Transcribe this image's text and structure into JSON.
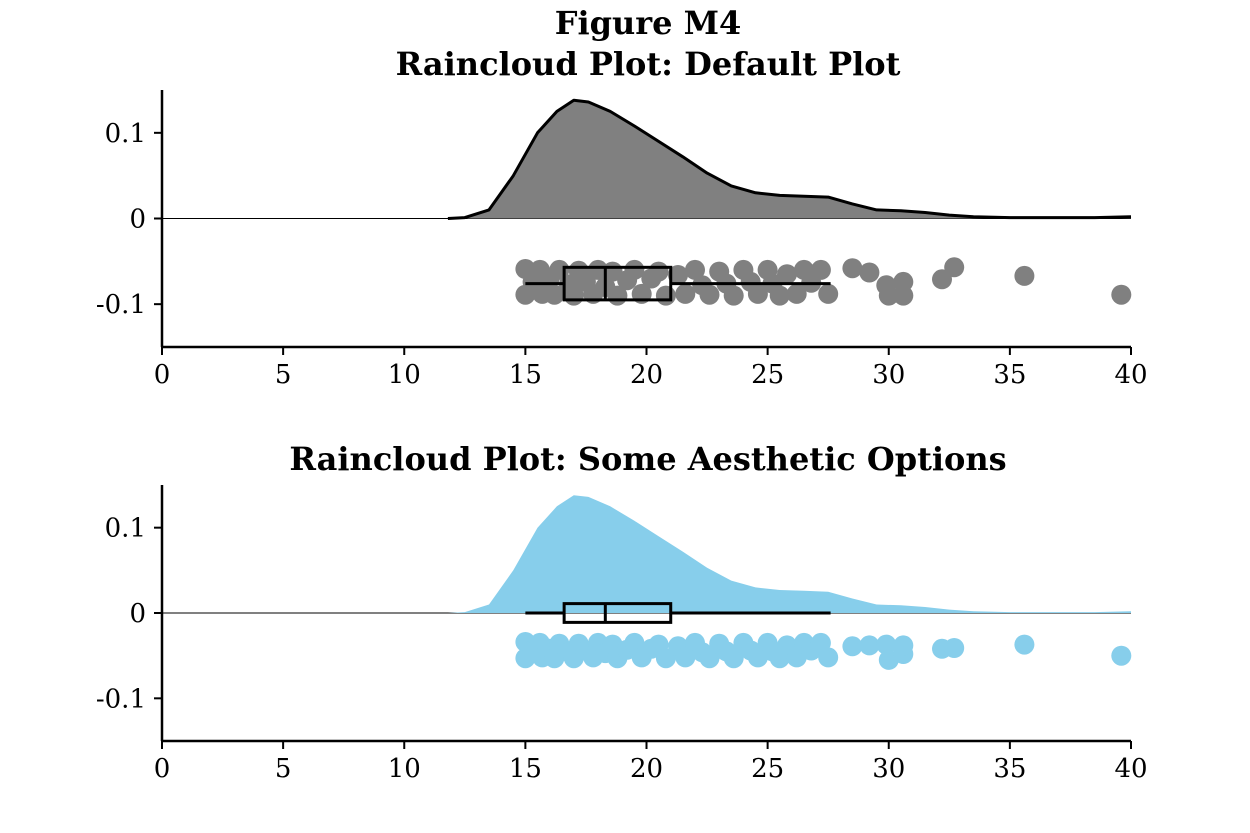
{
  "figure": {
    "title_line1": "Figure M4",
    "title_line2": "Raincloud Plot: Default Plot"
  },
  "chart_data": [
    {
      "type": "raincloud",
      "title": "Raincloud Plot: Default Plot",
      "xlim": [
        0,
        40
      ],
      "ylim": [
        -0.15,
        0.15
      ],
      "xticks": [
        "0",
        "5",
        "10",
        "15",
        "20",
        "25",
        "30",
        "35",
        "40"
      ],
      "yticks": [
        "0.1",
        "0",
        "-0.1"
      ],
      "ytick_values": [
        0.1,
        0,
        -0.1
      ],
      "grid": false,
      "style": {
        "cloud_fill": "#808080",
        "cloud_outline": "#000000",
        "rain_color": "#808080",
        "box_color": "#000000"
      },
      "density": [
        [
          11.8,
          0.0
        ],
        [
          12.5,
          0.001
        ],
        [
          13.5,
          0.01
        ],
        [
          14.5,
          0.05
        ],
        [
          15.5,
          0.1
        ],
        [
          16.3,
          0.125
        ],
        [
          17.0,
          0.138
        ],
        [
          17.6,
          0.136
        ],
        [
          18.5,
          0.125
        ],
        [
          19.5,
          0.108
        ],
        [
          20.5,
          0.09
        ],
        [
          21.5,
          0.072
        ],
        [
          22.5,
          0.053
        ],
        [
          23.5,
          0.038
        ],
        [
          24.5,
          0.03
        ],
        [
          25.5,
          0.027
        ],
        [
          26.5,
          0.026
        ],
        [
          27.5,
          0.025
        ],
        [
          28.5,
          0.017
        ],
        [
          29.5,
          0.01
        ],
        [
          30.5,
          0.009
        ],
        [
          31.5,
          0.007
        ],
        [
          32.5,
          0.004
        ],
        [
          33.5,
          0.002
        ],
        [
          35,
          0.001
        ],
        [
          37,
          0.001
        ],
        [
          38.5,
          0.001
        ],
        [
          40,
          0.002
        ]
      ],
      "boxplot": {
        "whisker_low": 15.0,
        "q1": 16.6,
        "median": 18.3,
        "q3": 21.0,
        "whisker_high": 27.6,
        "y": -0.076,
        "half_height": 0.019
      },
      "rain": [
        [
          15.0,
          -0.059
        ],
        [
          15.0,
          -0.089
        ],
        [
          15.3,
          -0.074
        ],
        [
          15.6,
          -0.06
        ],
        [
          15.7,
          -0.088
        ],
        [
          16.0,
          -0.07
        ],
        [
          16.2,
          -0.089
        ],
        [
          16.4,
          -0.06
        ],
        [
          16.8,
          -0.077
        ],
        [
          17.0,
          -0.09
        ],
        [
          17.2,
          -0.061
        ],
        [
          17.5,
          -0.074
        ],
        [
          17.8,
          -0.088
        ],
        [
          18.0,
          -0.06
        ],
        [
          18.3,
          -0.08
        ],
        [
          18.6,
          -0.062
        ],
        [
          18.8,
          -0.09
        ],
        [
          19.2,
          -0.072
        ],
        [
          19.5,
          -0.06
        ],
        [
          19.8,
          -0.088
        ],
        [
          20.2,
          -0.07
        ],
        [
          20.5,
          -0.062
        ],
        [
          20.8,
          -0.09
        ],
        [
          21.3,
          -0.066
        ],
        [
          21.6,
          -0.088
        ],
        [
          22.0,
          -0.06
        ],
        [
          22.3,
          -0.078
        ],
        [
          22.6,
          -0.089
        ],
        [
          23.0,
          -0.062
        ],
        [
          23.3,
          -0.076
        ],
        [
          23.6,
          -0.09
        ],
        [
          24.0,
          -0.06
        ],
        [
          24.3,
          -0.074
        ],
        [
          24.6,
          -0.088
        ],
        [
          25.0,
          -0.06
        ],
        [
          25.2,
          -0.076
        ],
        [
          25.5,
          -0.09
        ],
        [
          25.8,
          -0.065
        ],
        [
          26.2,
          -0.088
        ],
        [
          26.5,
          -0.06
        ],
        [
          26.8,
          -0.075
        ],
        [
          27.2,
          -0.06
        ],
        [
          27.5,
          -0.088
        ],
        [
          28.5,
          -0.058
        ],
        [
          29.2,
          -0.063
        ],
        [
          29.9,
          -0.078
        ],
        [
          30.0,
          -0.09
        ],
        [
          30.6,
          -0.09
        ],
        [
          30.6,
          -0.074
        ],
        [
          32.2,
          -0.071
        ],
        [
          32.7,
          -0.057
        ],
        [
          35.6,
          -0.067
        ],
        [
          39.6,
          -0.089
        ]
      ]
    },
    {
      "type": "raincloud",
      "title": "Raincloud Plot: Some Aesthetic Options",
      "xlim": [
        0,
        40
      ],
      "ylim": [
        -0.15,
        0.15
      ],
      "xticks": [
        "0",
        "5",
        "10",
        "15",
        "20",
        "25",
        "30",
        "35",
        "40"
      ],
      "yticks": [
        "0.1",
        "0",
        "-0.1"
      ],
      "ytick_values": [
        0.1,
        0,
        -0.1
      ],
      "grid": false,
      "style": {
        "cloud_fill": "#87ceeb",
        "cloud_outline": "none",
        "rain_color": "#87ceeb",
        "box_color": "#000000"
      },
      "density": [
        [
          11.8,
          0.0
        ],
        [
          12.5,
          0.001
        ],
        [
          13.5,
          0.01
        ],
        [
          14.5,
          0.05
        ],
        [
          15.5,
          0.1
        ],
        [
          16.3,
          0.125
        ],
        [
          17.0,
          0.138
        ],
        [
          17.6,
          0.136
        ],
        [
          18.5,
          0.125
        ],
        [
          19.5,
          0.108
        ],
        [
          20.5,
          0.09
        ],
        [
          21.5,
          0.072
        ],
        [
          22.5,
          0.053
        ],
        [
          23.5,
          0.038
        ],
        [
          24.5,
          0.03
        ],
        [
          25.5,
          0.027
        ],
        [
          26.5,
          0.026
        ],
        [
          27.5,
          0.025
        ],
        [
          28.5,
          0.017
        ],
        [
          29.5,
          0.01
        ],
        [
          30.5,
          0.009
        ],
        [
          31.5,
          0.007
        ],
        [
          32.5,
          0.004
        ],
        [
          33.5,
          0.002
        ],
        [
          35,
          0.001
        ],
        [
          37,
          0.001
        ],
        [
          38.5,
          0.001
        ],
        [
          40,
          0.002
        ]
      ],
      "boxplot": {
        "whisker_low": 15.0,
        "q1": 16.6,
        "median": 18.3,
        "q3": 21.0,
        "whisker_high": 27.6,
        "y": 0.0,
        "half_height": 0.011
      },
      "rain": [
        [
          15.0,
          -0.034
        ],
        [
          15.0,
          -0.053
        ],
        [
          15.3,
          -0.044
        ],
        [
          15.6,
          -0.035
        ],
        [
          15.7,
          -0.052
        ],
        [
          16.0,
          -0.042
        ],
        [
          16.2,
          -0.053
        ],
        [
          16.4,
          -0.036
        ],
        [
          16.8,
          -0.046
        ],
        [
          17.0,
          -0.053
        ],
        [
          17.2,
          -0.036
        ],
        [
          17.5,
          -0.044
        ],
        [
          17.8,
          -0.052
        ],
        [
          18.0,
          -0.035
        ],
        [
          18.3,
          -0.047
        ],
        [
          18.6,
          -0.037
        ],
        [
          18.8,
          -0.053
        ],
        [
          19.2,
          -0.043
        ],
        [
          19.5,
          -0.035
        ],
        [
          19.8,
          -0.052
        ],
        [
          20.2,
          -0.042
        ],
        [
          20.5,
          -0.037
        ],
        [
          20.8,
          -0.053
        ],
        [
          21.3,
          -0.039
        ],
        [
          21.6,
          -0.052
        ],
        [
          22.0,
          -0.035
        ],
        [
          22.3,
          -0.046
        ],
        [
          22.6,
          -0.053
        ],
        [
          23.0,
          -0.036
        ],
        [
          23.3,
          -0.045
        ],
        [
          23.6,
          -0.053
        ],
        [
          24.0,
          -0.035
        ],
        [
          24.3,
          -0.044
        ],
        [
          24.6,
          -0.052
        ],
        [
          25.0,
          -0.035
        ],
        [
          25.2,
          -0.045
        ],
        [
          25.5,
          -0.053
        ],
        [
          25.8,
          -0.038
        ],
        [
          26.2,
          -0.052
        ],
        [
          26.5,
          -0.035
        ],
        [
          26.8,
          -0.044
        ],
        [
          27.2,
          -0.035
        ],
        [
          27.5,
          -0.052
        ],
        [
          28.5,
          -0.039
        ],
        [
          29.2,
          -0.038
        ],
        [
          29.9,
          -0.037
        ],
        [
          30.0,
          -0.055
        ],
        [
          30.6,
          -0.048
        ],
        [
          30.6,
          -0.038
        ],
        [
          32.2,
          -0.042
        ],
        [
          32.7,
          -0.041
        ],
        [
          35.6,
          -0.037
        ],
        [
          39.6,
          -0.05
        ]
      ]
    }
  ]
}
